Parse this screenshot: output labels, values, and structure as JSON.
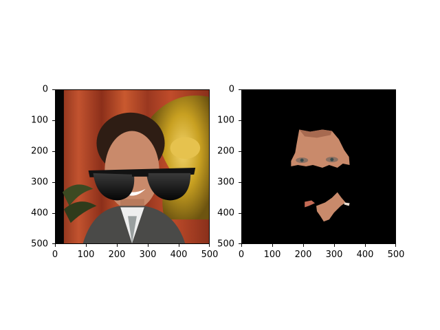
{
  "figure": {
    "panels": [
      {
        "name": "original-with-sunglasses",
        "description": "Photo of a smiling man with dark hair in a grey suit and tie, red curtains and a golden statue in background, with cartoon black sunglasses overlaid",
        "xticks": [
          "0",
          "100",
          "200",
          "300",
          "400",
          "500"
        ],
        "yticks": [
          "0",
          "100",
          "200",
          "300",
          "400",
          "500"
        ]
      },
      {
        "name": "segmented-face-mask",
        "description": "Black image showing only extracted skin regions: forehead/eyes area and small patches around the mouth",
        "xticks": [
          "0",
          "100",
          "200",
          "300",
          "400",
          "500"
        ],
        "yticks": [
          "0",
          "100",
          "200",
          "300",
          "400",
          "500"
        ]
      }
    ]
  },
  "colors": {
    "curtain": "#b2472a",
    "curtain_dark": "#7d2a17",
    "statue": "#c8a021",
    "suit": "#4a4a48",
    "skin": "#c98a6b",
    "hair": "#2e1d14",
    "sunglasses": "#121212",
    "mask_bg": "#000000"
  }
}
